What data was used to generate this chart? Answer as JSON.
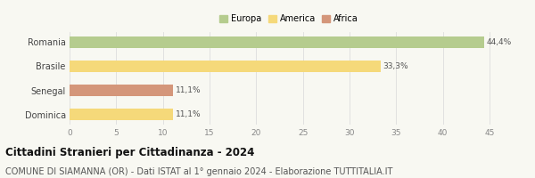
{
  "categories": [
    "Romania",
    "Brasile",
    "Senegal",
    "Dominica"
  ],
  "values": [
    44.4,
    33.3,
    11.1,
    11.1
  ],
  "labels": [
    "44,4%",
    "33,3%",
    "11,1%",
    "11,1%"
  ],
  "bar_colors": [
    "#b5cc8e",
    "#f5d97a",
    "#d4967a",
    "#f5d97a"
  ],
  "legend": [
    {
      "label": "Europa",
      "color": "#b5cc8e"
    },
    {
      "label": "America",
      "color": "#f5d97a"
    },
    {
      "label": "Africa",
      "color": "#d4967a"
    }
  ],
  "xlim": [
    0,
    47
  ],
  "xticks": [
    0,
    5,
    10,
    15,
    20,
    25,
    30,
    35,
    40,
    45
  ],
  "title": "Cittadini Stranieri per Cittadinanza - 2024",
  "subtitle": "COMUNE DI SIAMANNA (OR) - Dati ISTAT al 1° gennaio 2024 - Elaborazione TUTTITALIA.IT",
  "background_color": "#f8f8f2",
  "grid_color": "#dddddd",
  "title_fontsize": 8.5,
  "subtitle_fontsize": 7,
  "bar_label_fontsize": 6.5,
  "ytick_fontsize": 7,
  "xtick_fontsize": 6.5,
  "legend_fontsize": 7,
  "bar_height": 0.5
}
